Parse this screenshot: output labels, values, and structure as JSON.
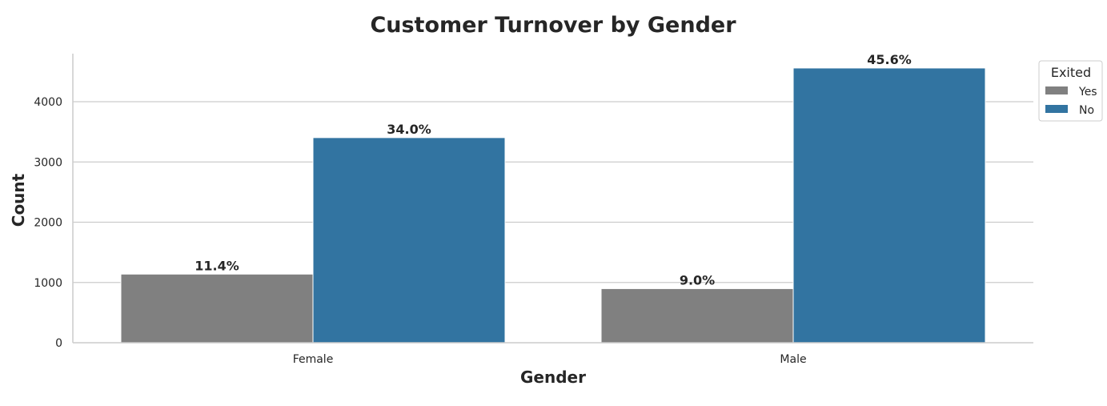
{
  "chart_data": {
    "type": "bar",
    "title": "Customer Turnover by Gender",
    "xlabel": "Gender",
    "ylabel": "Count",
    "categories": [
      "Female",
      "Male"
    ],
    "ylim": [
      0,
      4800
    ],
    "yticks": [
      0,
      1000,
      2000,
      3000,
      4000
    ],
    "grid": true,
    "legend": {
      "title": "Exited",
      "placement": "top-right outside"
    },
    "series": [
      {
        "name": "Yes",
        "color": "#808080",
        "values": [
          1139,
          898
        ],
        "labels": [
          "11.4%",
          "9.0%"
        ]
      },
      {
        "name": "No",
        "color": "#3274a1",
        "values": [
          3404,
          4559
        ],
        "labels": [
          "34.0%",
          "45.6%"
        ]
      }
    ]
  }
}
